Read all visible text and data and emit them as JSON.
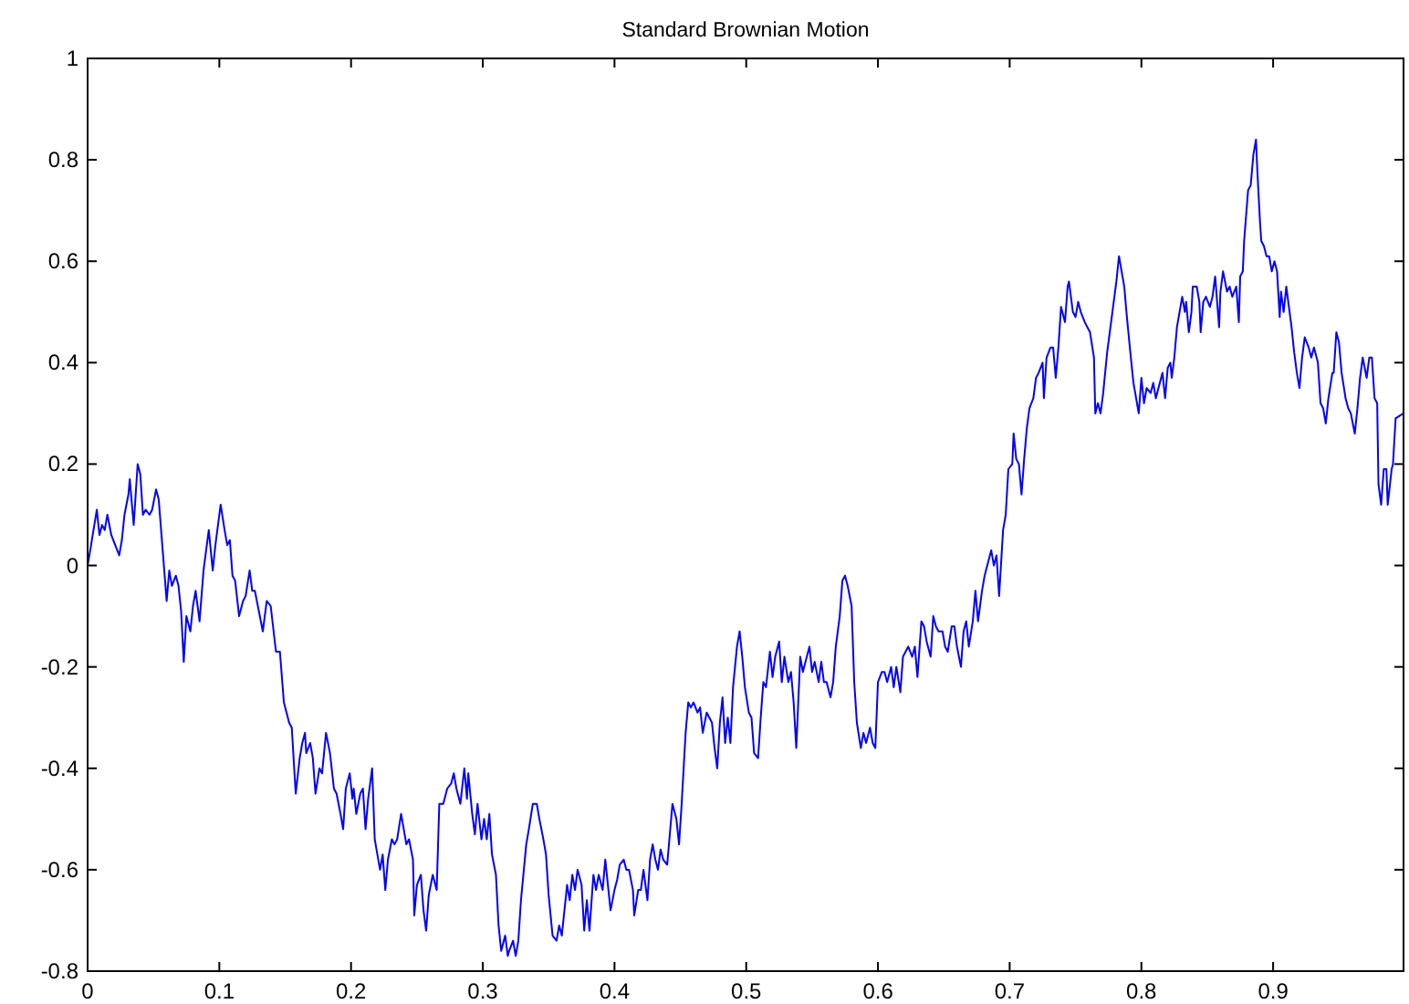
{
  "chart_data": {
    "type": "line",
    "title": "Standard Brownian Motion",
    "xlim": [
      0,
      0.999
    ],
    "ylim": [
      -0.8,
      1
    ],
    "xticks": [
      0,
      0.1,
      0.2,
      0.3,
      0.4,
      0.5,
      0.6,
      0.7,
      0.8,
      0.9
    ],
    "yticks": [
      -0.8,
      -0.6,
      -0.4,
      -0.2,
      0,
      0.2,
      0.4,
      0.6,
      0.8,
      1
    ],
    "line_style": "solid",
    "x": [
      0,
      0.002,
      0.007,
      0.009,
      0.011,
      0.013,
      0.015,
      0.018,
      0.021,
      0.024,
      0.026,
      0.028,
      0.031,
      0.032,
      0.035,
      0.038,
      0.04,
      0.042,
      0.044,
      0.047,
      0.049,
      0.052,
      0.054,
      0.057,
      0.06,
      0.062,
      0.064,
      0.067,
      0.069,
      0.071,
      0.073,
      0.075,
      0.078,
      0.08,
      0.082,
      0.085,
      0.088,
      0.092,
      0.095,
      0.097,
      0.101,
      0.104,
      0.106,
      0.108,
      0.11,
      0.112,
      0.115,
      0.118,
      0.12,
      0.123,
      0.125,
      0.127,
      0.13,
      0.133,
      0.136,
      0.139,
      0.143,
      0.146,
      0.149,
      0.153,
      0.155,
      0.158,
      0.161,
      0.163,
      0.165,
      0.166,
      0.169,
      0.171,
      0.173,
      0.176,
      0.178,
      0.181,
      0.184,
      0.187,
      0.189,
      0.192,
      0.194,
      0.196,
      0.199,
      0.201,
      0.202,
      0.204,
      0.207,
      0.209,
      0.211,
      0.213,
      0.216,
      0.218,
      0.222,
      0.224,
      0.226,
      0.228,
      0.231,
      0.233,
      0.235,
      0.238,
      0.24,
      0.242,
      0.244,
      0.247,
      0.248,
      0.25,
      0.253,
      0.255,
      0.257,
      0.259,
      0.262,
      0.265,
      0.267,
      0.27,
      0.273,
      0.276,
      0.278,
      0.28,
      0.283,
      0.286,
      0.288,
      0.289,
      0.292,
      0.294,
      0.296,
      0.299,
      0.301,
      0.303,
      0.305,
      0.307,
      0.31,
      0.312,
      0.314,
      0.317,
      0.319,
      0.32,
      0.323,
      0.325,
      0.327,
      0.329,
      0.333,
      0.335,
      0.338,
      0.341,
      0.343,
      0.346,
      0.348,
      0.35,
      0.353,
      0.356,
      0.358,
      0.36,
      0.362,
      0.364,
      0.366,
      0.368,
      0.37,
      0.372,
      0.375,
      0.377,
      0.379,
      0.381,
      0.384,
      0.386,
      0.388,
      0.391,
      0.393,
      0.395,
      0.397,
      0.4,
      0.402,
      0.404,
      0.407,
      0.409,
      0.411,
      0.414,
      0.415,
      0.418,
      0.42,
      0.422,
      0.425,
      0.427,
      0.429,
      0.431,
      0.433,
      0.435,
      0.437,
      0.44,
      0.442,
      0.444,
      0.447,
      0.449,
      0.451,
      0.454,
      0.456,
      0.458,
      0.46,
      0.463,
      0.465,
      0.467,
      0.47,
      0.472,
      0.474,
      0.476,
      0.478,
      0.48,
      0.482,
      0.484,
      0.486,
      0.488,
      0.49,
      0.493,
      0.495,
      0.497,
      0.499,
      0.502,
      0.504,
      0.506,
      0.509,
      0.511,
      0.513,
      0.515,
      0.518,
      0.52,
      0.522,
      0.525,
      0.527,
      0.529,
      0.532,
      0.534,
      0.536,
      0.538,
      0.541,
      0.543,
      0.545,
      0.548,
      0.55,
      0.552,
      0.555,
      0.557,
      0.559,
      0.561,
      0.564,
      0.566,
      0.568,
      0.571,
      0.573,
      0.575,
      0.577,
      0.58,
      0.582,
      0.584,
      0.587,
      0.589,
      0.591,
      0.594,
      0.596,
      0.598,
      0.6,
      0.603,
      0.605,
      0.607,
      0.61,
      0.612,
      0.614,
      0.617,
      0.619,
      0.621,
      0.623,
      0.626,
      0.628,
      0.63,
      0.633,
      0.635,
      0.637,
      0.64,
      0.642,
      0.644,
      0.646,
      0.649,
      0.651,
      0.653,
      0.656,
      0.658,
      0.66,
      0.663,
      0.665,
      0.667,
      0.669,
      0.672,
      0.674,
      0.676,
      0.679,
      0.681,
      0.683,
      0.686,
      0.688,
      0.69,
      0.692,
      0.695,
      0.697,
      0.699,
      0.702,
      0.703,
      0.705,
      0.707,
      0.709,
      0.711,
      0.713,
      0.715,
      0.718,
      0.72,
      0.722,
      0.725,
      0.726,
      0.728,
      0.731,
      0.733,
      0.735,
      0.737,
      0.739,
      0.742,
      0.744,
      0.745,
      0.748,
      0.75,
      0.752,
      0.754,
      0.757,
      0.759,
      0.761,
      0.764,
      0.765,
      0.767,
      0.769,
      0.771,
      0.774,
      0.776,
      0.778,
      0.781,
      0.783,
      0.785,
      0.787,
      0.789,
      0.792,
      0.794,
      0.796,
      0.798,
      0.8,
      0.802,
      0.804,
      0.807,
      0.809,
      0.811,
      0.814,
      0.816,
      0.818,
      0.82,
      0.822,
      0.823,
      0.825,
      0.827,
      0.829,
      0.831,
      0.833,
      0.834,
      0.836,
      0.838,
      0.839,
      0.842,
      0.844,
      0.845,
      0.847,
      0.849,
      0.852,
      0.854,
      0.856,
      0.859,
      0.86,
      0.862,
      0.865,
      0.867,
      0.869,
      0.872,
      0.874,
      0.875,
      0.877,
      0.878,
      0.881,
      0.883,
      0.885,
      0.887,
      0.888,
      0.89,
      0.891,
      0.893,
      0.895,
      0.897,
      0.899,
      0.901,
      0.903,
      0.905,
      0.906,
      0.908,
      0.91,
      0.911,
      0.914,
      0.916,
      0.918,
      0.92,
      0.922,
      0.924,
      0.927,
      0.929,
      0.931,
      0.934,
      0.936,
      0.938,
      0.94,
      0.942,
      0.945,
      0.946,
      0.948,
      0.95,
      0.952,
      0.955,
      0.957,
      0.959,
      0.962,
      0.964,
      0.966,
      0.968,
      0.971,
      0.973,
      0.975,
      0.977,
      0.979,
      0.98,
      0.982,
      0.984,
      0.986,
      0.987,
      0.99,
      0.991,
      0.993,
      0.999
    ],
    "series": [
      {
        "color": "#0000ff",
        "values": [
          0,
          0.03,
          0.11,
          0.06,
          0.08,
          0.07,
          0.1,
          0.06,
          0.04,
          0.02,
          0.05,
          0.1,
          0.14,
          0.17,
          0.08,
          0.2,
          0.18,
          0.1,
          0.11,
          0.1,
          0.11,
          0.15,
          0.13,
          0.03,
          -0.07,
          -0.01,
          -0.04,
          -0.02,
          -0.04,
          -0.09,
          -0.19,
          -0.1,
          -0.13,
          -0.08,
          -0.05,
          -0.11,
          -0.01,
          0.07,
          -0.01,
          0.04,
          0.12,
          0.07,
          0.04,
          0.05,
          -0.02,
          -0.03,
          -0.1,
          -0.07,
          -0.06,
          -0.01,
          -0.05,
          -0.05,
          -0.09,
          -0.13,
          -0.07,
          -0.08,
          -0.17,
          -0.17,
          -0.27,
          -0.31,
          -0.32,
          -0.45,
          -0.38,
          -0.35,
          -0.33,
          -0.37,
          -0.35,
          -0.38,
          -0.45,
          -0.4,
          -0.41,
          -0.33,
          -0.37,
          -0.44,
          -0.45,
          -0.49,
          -0.52,
          -0.44,
          -0.41,
          -0.46,
          -0.44,
          -0.49,
          -0.45,
          -0.44,
          -0.52,
          -0.46,
          -0.4,
          -0.54,
          -0.6,
          -0.57,
          -0.64,
          -0.58,
          -0.54,
          -0.55,
          -0.54,
          -0.49,
          -0.52,
          -0.55,
          -0.54,
          -0.58,
          -0.69,
          -0.63,
          -0.61,
          -0.68,
          -0.72,
          -0.65,
          -0.61,
          -0.64,
          -0.47,
          -0.47,
          -0.44,
          -0.43,
          -0.41,
          -0.44,
          -0.47,
          -0.4,
          -0.46,
          -0.41,
          -0.49,
          -0.53,
          -0.47,
          -0.54,
          -0.5,
          -0.54,
          -0.49,
          -0.57,
          -0.61,
          -0.71,
          -0.76,
          -0.73,
          -0.77,
          -0.76,
          -0.74,
          -0.77,
          -0.74,
          -0.66,
          -0.55,
          -0.52,
          -0.47,
          -0.47,
          -0.5,
          -0.54,
          -0.57,
          -0.65,
          -0.73,
          -0.74,
          -0.71,
          -0.73,
          -0.68,
          -0.63,
          -0.66,
          -0.61,
          -0.64,
          -0.6,
          -0.63,
          -0.72,
          -0.66,
          -0.72,
          -0.61,
          -0.64,
          -0.61,
          -0.64,
          -0.58,
          -0.63,
          -0.68,
          -0.64,
          -0.62,
          -0.59,
          -0.58,
          -0.6,
          -0.6,
          -0.64,
          -0.69,
          -0.64,
          -0.64,
          -0.6,
          -0.66,
          -0.58,
          -0.55,
          -0.58,
          -0.6,
          -0.56,
          -0.58,
          -0.59,
          -0.53,
          -0.47,
          -0.5,
          -0.55,
          -0.47,
          -0.33,
          -0.27,
          -0.28,
          -0.27,
          -0.29,
          -0.28,
          -0.33,
          -0.29,
          -0.3,
          -0.31,
          -0.36,
          -0.4,
          -0.31,
          -0.26,
          -0.35,
          -0.3,
          -0.35,
          -0.24,
          -0.16,
          -0.13,
          -0.18,
          -0.24,
          -0.29,
          -0.3,
          -0.37,
          -0.38,
          -0.3,
          -0.23,
          -0.24,
          -0.17,
          -0.22,
          -0.18,
          -0.15,
          -0.23,
          -0.18,
          -0.23,
          -0.21,
          -0.27,
          -0.36,
          -0.18,
          -0.21,
          -0.19,
          -0.16,
          -0.21,
          -0.19,
          -0.23,
          -0.19,
          -0.23,
          -0.23,
          -0.26,
          -0.23,
          -0.16,
          -0.1,
          -0.03,
          -0.02,
          -0.04,
          -0.08,
          -0.23,
          -0.31,
          -0.36,
          -0.33,
          -0.35,
          -0.32,
          -0.35,
          -0.36,
          -0.23,
          -0.21,
          -0.21,
          -0.23,
          -0.2,
          -0.24,
          -0.2,
          -0.25,
          -0.18,
          -0.17,
          -0.16,
          -0.18,
          -0.16,
          -0.22,
          -0.11,
          -0.12,
          -0.15,
          -0.18,
          -0.1,
          -0.12,
          -0.13,
          -0.13,
          -0.16,
          -0.17,
          -0.12,
          -0.12,
          -0.16,
          -0.2,
          -0.13,
          -0.11,
          -0.16,
          -0.11,
          -0.05,
          -0.11,
          -0.05,
          -0.02,
          0.0,
          0.03,
          0.0,
          0.02,
          -0.06,
          0.07,
          0.1,
          0.19,
          0.2,
          0.26,
          0.21,
          0.2,
          0.14,
          0.21,
          0.27,
          0.31,
          0.33,
          0.37,
          0.38,
          0.4,
          0.33,
          0.41,
          0.43,
          0.43,
          0.37,
          0.43,
          0.51,
          0.48,
          0.55,
          0.56,
          0.5,
          0.49,
          0.52,
          0.5,
          0.48,
          0.47,
          0.46,
          0.41,
          0.3,
          0.32,
          0.3,
          0.34,
          0.42,
          0.46,
          0.5,
          0.56,
          0.61,
          0.58,
          0.55,
          0.49,
          0.41,
          0.36,
          0.33,
          0.3,
          0.37,
          0.32,
          0.35,
          0.34,
          0.36,
          0.33,
          0.36,
          0.38,
          0.33,
          0.39,
          0.4,
          0.37,
          0.41,
          0.47,
          0.5,
          0.53,
          0.5,
          0.52,
          0.46,
          0.5,
          0.55,
          0.55,
          0.52,
          0.46,
          0.52,
          0.53,
          0.51,
          0.53,
          0.57,
          0.47,
          0.54,
          0.58,
          0.54,
          0.55,
          0.53,
          0.55,
          0.48,
          0.57,
          0.58,
          0.64,
          0.74,
          0.75,
          0.81,
          0.84,
          0.78,
          0.68,
          0.64,
          0.63,
          0.61,
          0.61,
          0.58,
          0.6,
          0.58,
          0.49,
          0.54,
          0.5,
          0.55,
          0.53,
          0.47,
          0.42,
          0.38,
          0.35,
          0.41,
          0.45,
          0.43,
          0.41,
          0.43,
          0.4,
          0.32,
          0.31,
          0.28,
          0.33,
          0.38,
          0.38,
          0.46,
          0.44,
          0.38,
          0.33,
          0.31,
          0.3,
          0.26,
          0.31,
          0.37,
          0.41,
          0.37,
          0.41,
          0.41,
          0.33,
          0.32,
          0.16,
          0.12,
          0.19,
          0.19,
          0.12,
          0.19,
          0.2,
          0.29,
          0.3
        ]
      }
    ]
  }
}
